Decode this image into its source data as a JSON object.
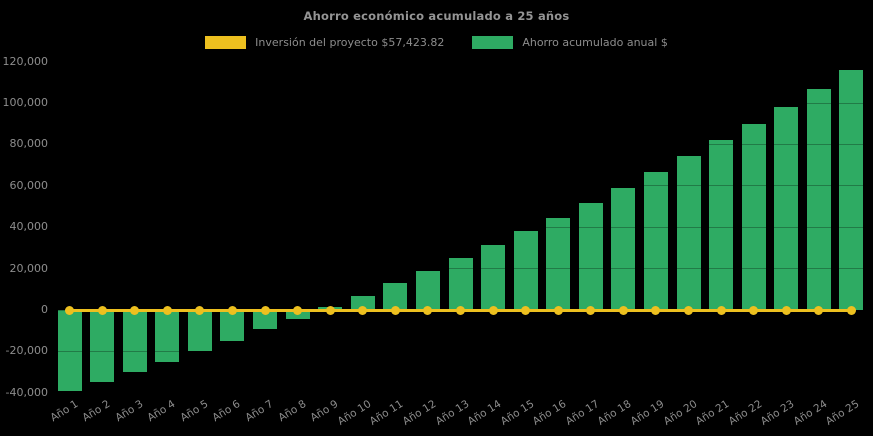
{
  "title": "Ahorro económico acumulado a 25 años",
  "legend": {
    "items": [
      {
        "label": "Inversión del proyecto $57,423.82",
        "color": "#EDC01F"
      },
      {
        "label": "Ahorro acumulado anual $",
        "color": "#2EAB63"
      }
    ]
  },
  "chart_data": {
    "type": "bar",
    "title": "Ahorro económico acumulado a 25 años",
    "xlabel": "",
    "ylabel": "",
    "background_color": "#000000",
    "text_color": "#8d8d8d",
    "grid": "horizontal, faint dark overlay on bars",
    "legend_position": "top-center",
    "categories": [
      "Año 1",
      "Año 2",
      "Año 3",
      "Año 4",
      "Año 5",
      "Año 6",
      "Año 7",
      "Año 8",
      "Año 9",
      "Año 10",
      "Año 11",
      "Año 12",
      "Año 13",
      "Año 14",
      "Año 15",
      "Año 16",
      "Año 17",
      "Año 18",
      "Año 19",
      "Año 20",
      "Año 21",
      "Año 22",
      "Año 23",
      "Año 24",
      "Año 25"
    ],
    "series": [
      {
        "name": "Inversión del proyecto $57,423.82",
        "type": "line",
        "color": "#EDC01F",
        "marker": "circle",
        "values": [
          0,
          0,
          0,
          0,
          0,
          0,
          0,
          0,
          0,
          0,
          0,
          0,
          0,
          0,
          0,
          0,
          0,
          0,
          0,
          0,
          0,
          0,
          0,
          0,
          0
        ]
      },
      {
        "name": "Ahorro acumulado anual $",
        "type": "bar",
        "color": "#2EAB63",
        "values": [
          -39000,
          -34600,
          -29800,
          -24900,
          -19800,
          -15200,
          -9300,
          -4500,
          1300,
          7000,
          13000,
          18900,
          25200,
          31600,
          38200,
          44400,
          51800,
          59000,
          66500,
          74400,
          82000,
          89800,
          98000,
          107000,
          116200
        ]
      }
    ],
    "ylim": [
      -40600,
      123250
    ],
    "yticks": [
      -40000,
      -20000,
      0,
      20000,
      40000,
      60000,
      80000,
      100000,
      120000
    ],
    "ytick_labels": [
      "-40,000",
      "-20,000",
      "0",
      "20,000",
      "40,000",
      "60,000",
      "80,000",
      "100,000",
      "120,000"
    ]
  }
}
